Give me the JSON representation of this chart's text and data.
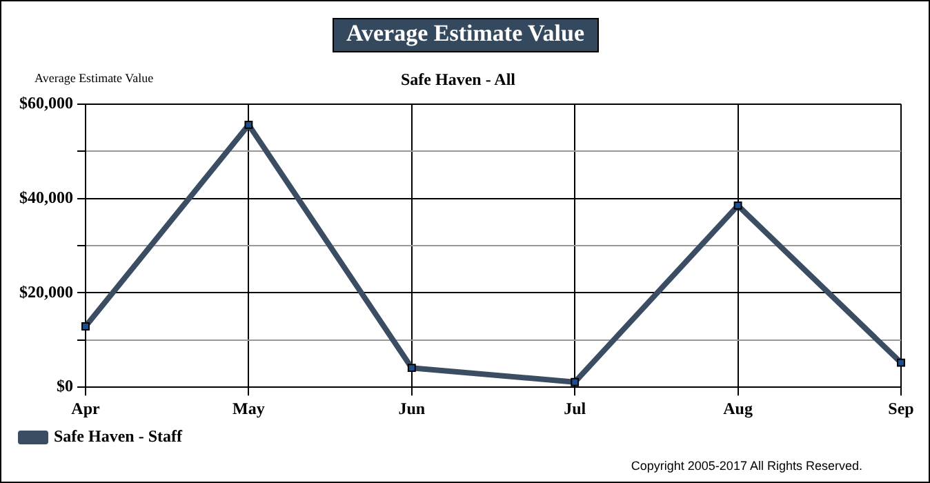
{
  "chart_data": {
    "type": "line",
    "title": "Average Estimate Value",
    "subtitle": "Safe Haven - All",
    "ylabel": "Average Estimate Value",
    "categories": [
      "Apr",
      "May",
      "Jun",
      "Jul",
      "Aug",
      "Sep"
    ],
    "series": [
      {
        "name": "Safe Haven - Staff",
        "color": "#3b4d63",
        "values": [
          12900,
          55600,
          4100,
          1100,
          38500,
          5200
        ]
      }
    ],
    "ylim": [
      0,
      60000
    ],
    "yticks": [
      {
        "value": 0,
        "label": "$0"
      },
      {
        "value": 10000,
        "label": null
      },
      {
        "value": 20000,
        "label": "$20,000"
      },
      {
        "value": 30000,
        "label": null
      },
      {
        "value": 40000,
        "label": "$40,000"
      },
      {
        "value": 50000,
        "label": null
      },
      {
        "value": 60000,
        "label": "$60,000"
      }
    ],
    "grid": true,
    "legend": "bottom left",
    "marker": "square",
    "line_style": "solid",
    "annotations": [
      "Copyright 2005-2017 All Rights Reserved."
    ]
  }
}
